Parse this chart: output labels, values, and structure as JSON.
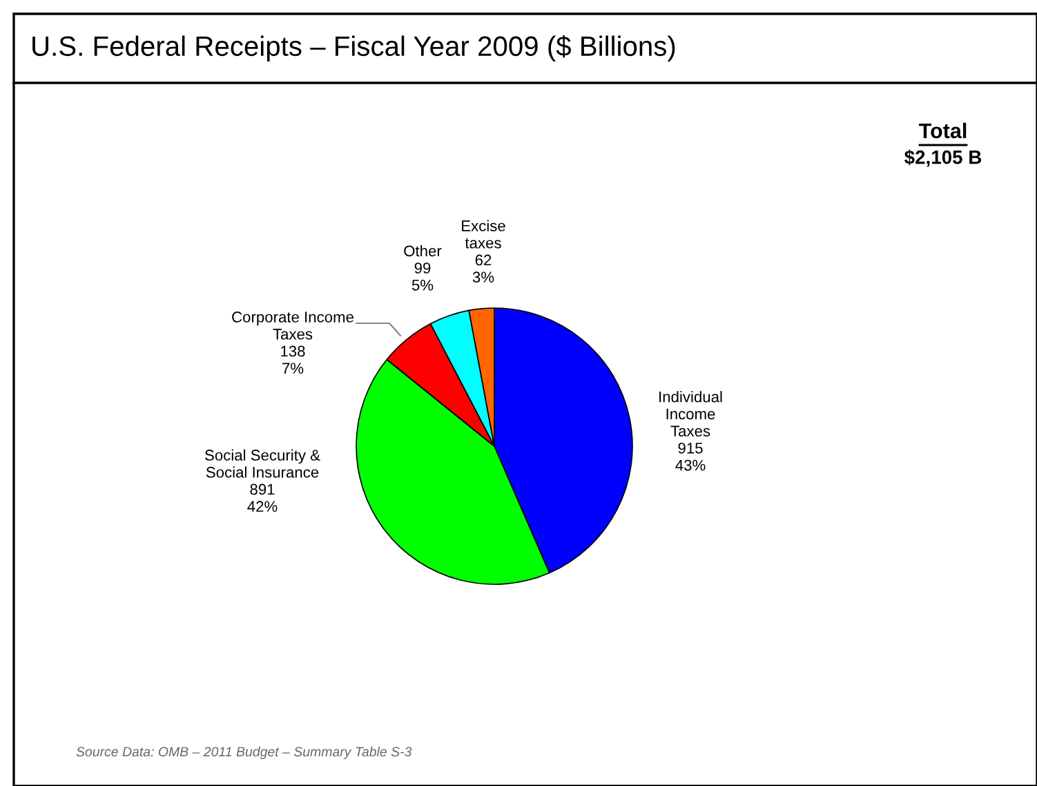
{
  "chart_data": {
    "type": "pie",
    "title": "U.S. Federal Receipts – Fiscal Year 2009 ($ Billions)",
    "categories": [
      "Individual\nIncome\nTaxes",
      "Social Security &\nSocial Insurance",
      "Corporate Income\nTaxes",
      "Other",
      "Excise\ntaxes"
    ],
    "values": [
      915,
      891,
      138,
      99,
      62
    ],
    "value_labels": [
      "915\n43%",
      "891\n42%",
      "138\n7%",
      "99\n5%",
      "62\n3%"
    ],
    "colors": [
      "#0000ff",
      "#00ff00",
      "#ff0000",
      "#00ffff",
      "#ff6600"
    ],
    "annotations": [
      "Total",
      "$2,105 B",
      "Source Data: OMB – 2011 Budget – Summary Table S-3"
    ]
  }
}
